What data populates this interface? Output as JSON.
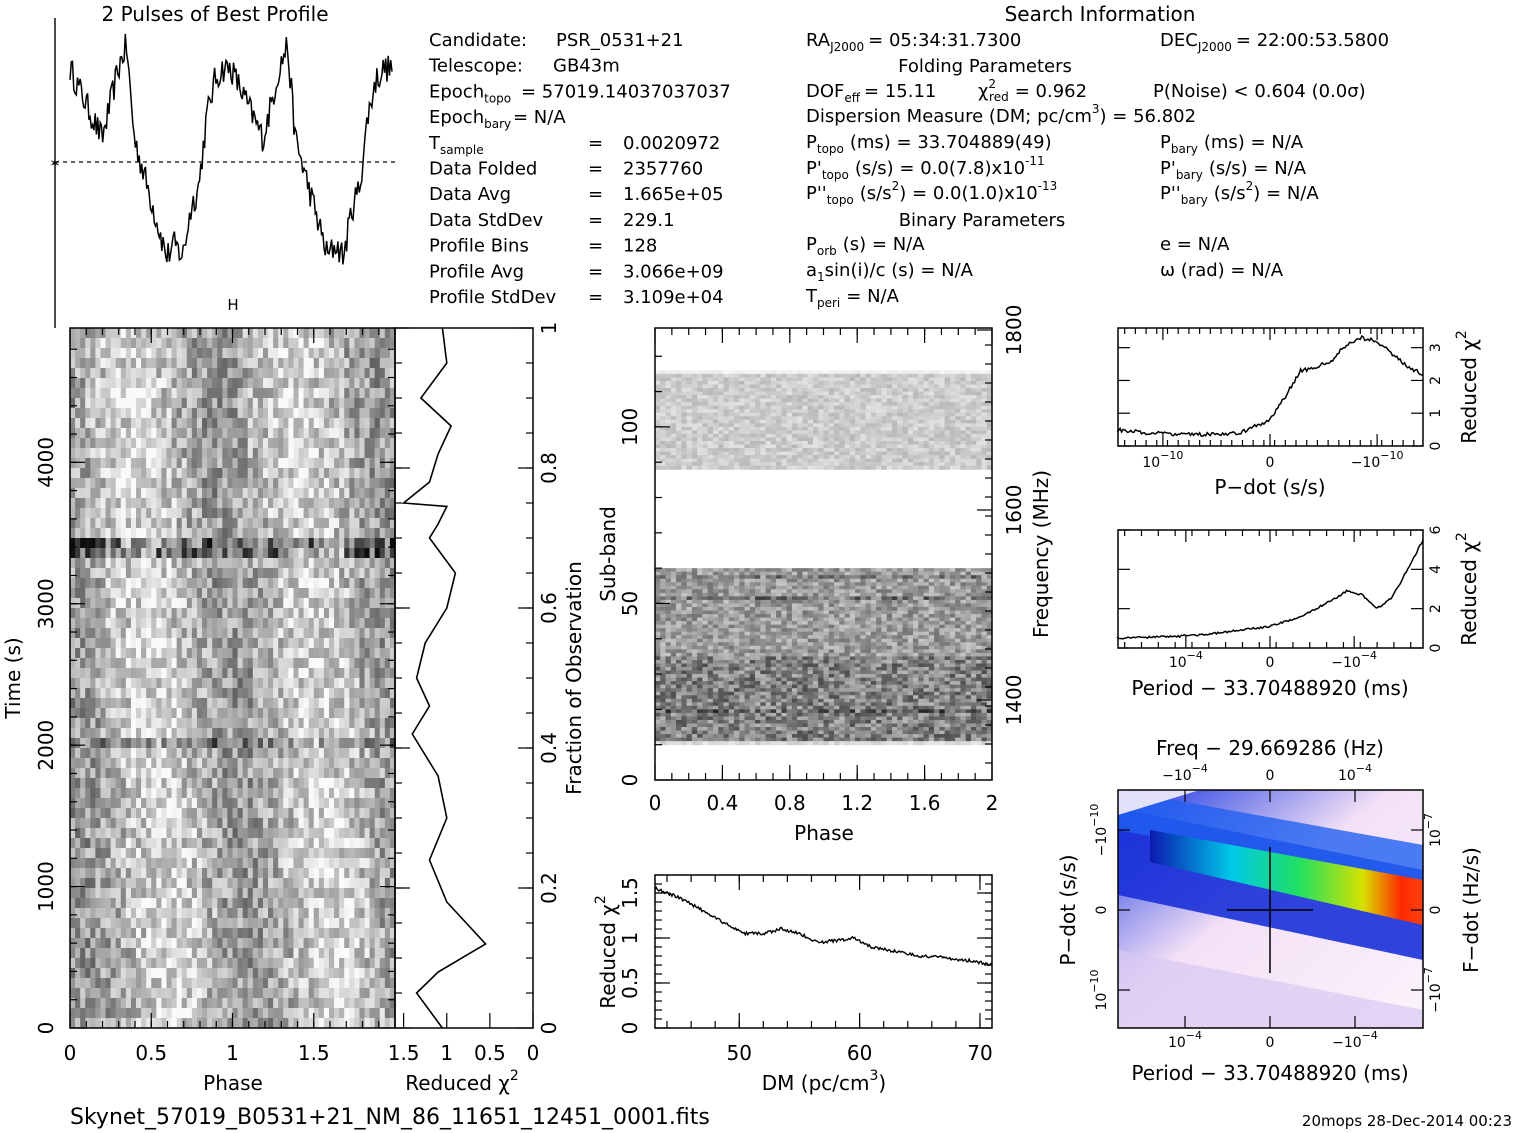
{
  "header": {
    "profile_title": "2 Pulses of Best Profile",
    "search_title": "Search Information",
    "folding_title": "Folding Parameters",
    "binary_title": "Binary Parameters"
  },
  "info_left": [
    {
      "label": "Candidate:",
      "value": "PSR_0531+21"
    },
    {
      "label": "Telescope:",
      "value": "GB43m"
    },
    {
      "label": "Epoch",
      "sub": "topo",
      "value": "= 57019.14037037037"
    },
    {
      "label": "Epoch",
      "sub": "bary",
      "value": "= N/A"
    },
    {
      "label": "T",
      "sub": "sample",
      "value": "0.0020972"
    },
    {
      "label": "Data Folded",
      "value": "2357760"
    },
    {
      "label": "Data Avg",
      "value": "1.665e+05"
    },
    {
      "label": "Data StdDev",
      "value": "229.1"
    },
    {
      "label": "Profile Bins",
      "value": "128"
    },
    {
      "label": "Profile Avg",
      "value": "3.066e+09"
    },
    {
      "label": "Profile StdDev",
      "value": "3.109e+04"
    }
  ],
  "info_right": {
    "ra": "RA",
    "ra_sub": "J2000",
    "ra_value": "= 05:34:31.7300",
    "dec": "DEC",
    "dec_sub": "J2000",
    "dec_value": "= 22:00:53.5800",
    "dof": "DOF",
    "dof_sub": "eff",
    "dof_value": "= 15.11",
    "chi_value": "= 0.962",
    "pnoise": "P(Noise) < 0.604   (0.0σ)",
    "dm_line": "Dispersion Measure (DM; pc/cm",
    "dm_value": ") = 56.802",
    "ptopo": "(ms) =  33.704889(49)",
    "pbary": "(ms) = N/A",
    "pdtopo": "(s/s) = 0.0(7.8)x10",
    "pdtopo_exp": "-11",
    "pdbary": "(s/s) = N/A",
    "pddtopo": "(s/s",
    "pddtopo_val": ") = 0.0(1.0)x10",
    "pddtopo_exp": "-13",
    "pddbary_val": ") = N/A",
    "porb": "(s) = N/A",
    "asini": "a",
    "asini_rest": "sin(i)/c (s) = N/A",
    "tperi": "= N/A",
    "ecc": "e = N/A",
    "omega": "ω (rad) = N/A"
  },
  "footer": {
    "filename": "Skynet_57019_B0531+21_NM_86_11651_12451_0001.fits",
    "stamp": "20mops 28-Dec-2014 00:23"
  },
  "chart_data": [
    {
      "name": "pulse-profile",
      "type": "line",
      "title": "2 Pulses of Best Profile",
      "x": [
        0,
        0.1,
        0.2,
        0.3,
        0.35,
        0.4,
        0.5,
        0.6,
        0.65,
        0.7,
        0.75,
        0.8,
        0.85,
        0.9,
        0.95,
        1.0,
        1.1,
        1.2,
        1.3,
        1.35,
        1.4,
        1.5,
        1.6,
        1.65,
        1.7,
        1.75,
        1.8,
        1.85,
        1.9,
        1.95,
        2.0
      ],
      "y": [
        0.9,
        0.75,
        0.6,
        0.9,
        1.0,
        0.6,
        0.35,
        0.1,
        0.15,
        0.1,
        0.3,
        0.4,
        0.7,
        0.85,
        0.9,
        0.9,
        0.75,
        0.6,
        0.9,
        1.0,
        0.6,
        0.35,
        0.1,
        0.15,
        0.1,
        0.3,
        0.4,
        0.7,
        0.85,
        0.9,
        0.9
      ]
    },
    {
      "name": "time-phase",
      "type": "heatmap",
      "xlabel": "Phase",
      "ylabel": "Time (s)",
      "xlim": [
        0,
        2
      ],
      "ylim": [
        0,
        5000
      ],
      "xticks": [
        "0",
        "0.5",
        "1",
        "1.5"
      ],
      "yticks": [
        "0",
        "1000",
        "2000",
        "3000",
        "4000"
      ]
    },
    {
      "name": "time-chi2",
      "type": "line",
      "xlabel": "Reduced χ",
      "xlabel_sup": "2",
      "ylabel": "Fraction of Observation",
      "xticks": [
        "1.5",
        "1",
        "0.5",
        "0"
      ],
      "yticks": [
        "0",
        "0.2",
        "0.4",
        "0.6",
        "0.8",
        "1"
      ],
      "x": [
        1.05,
        1.35,
        1.1,
        0.55,
        1.0,
        1.2,
        1.0,
        1.1,
        1.3,
        1.4,
        1.2,
        1.35,
        1.25,
        1.0,
        0.9,
        1.2,
        1.1,
        1.0,
        1.5,
        1.2,
        1.1,
        0.95,
        1.3,
        1.0,
        1.05
      ],
      "y": [
        0,
        0.05,
        0.08,
        0.12,
        0.18,
        0.24,
        0.3,
        0.36,
        0.4,
        0.42,
        0.46,
        0.5,
        0.55,
        0.6,
        0.65,
        0.7,
        0.72,
        0.745,
        0.75,
        0.78,
        0.82,
        0.86,
        0.9,
        0.95,
        1.0
      ]
    },
    {
      "name": "subband-phase",
      "type": "heatmap",
      "xlabel": "Phase",
      "ylabel": "Sub-band",
      "ylabel2": "Frequency (MHz)",
      "xlim": [
        0,
        2
      ],
      "ylim": [
        0,
        128
      ],
      "xticks": [
        "0",
        "0.4",
        "0.8",
        "1.2",
        "1.6",
        "2"
      ],
      "yticks": [
        "0",
        "50",
        "100"
      ],
      "y2ticks": [
        "1400",
        "1600",
        "1800"
      ]
    },
    {
      "name": "dm-chi2",
      "type": "line",
      "xlabel": "DM (pc/cm",
      "xlabel_sup": "3",
      "xlabel_end": ")",
      "ylabel": "Reduced χ",
      "ylabel_sup": "2",
      "xlim": [
        43,
        71
      ],
      "ylim": [
        0,
        1.7
      ],
      "xticks": [
        "50",
        "60",
        "70"
      ],
      "yticks": [
        "0",
        "0.5",
        "1",
        "1.5"
      ],
      "x": [
        43,
        45,
        47,
        49,
        50.5,
        52,
        53.5,
        55,
        56.5,
        58,
        59.5,
        61,
        63,
        65,
        67,
        69,
        71
      ],
      "y": [
        1.55,
        1.45,
        1.3,
        1.15,
        1.05,
        1.05,
        1.1,
        1.05,
        0.95,
        0.97,
        1.0,
        0.9,
        0.85,
        0.8,
        0.78,
        0.75,
        0.7
      ]
    },
    {
      "name": "pdot-chi2",
      "type": "line",
      "xlabel": "P−dot (s/s)",
      "ylabel": "Reduced χ",
      "ylabel_sup": "2",
      "ylim": [
        0,
        3.5
      ],
      "xticks": [
        "10",
        "0",
        "−10"
      ],
      "xtick_sup": "−10",
      "yticks": [
        "0",
        "1",
        "2",
        "3"
      ],
      "x": [
        -1.0,
        -0.8,
        -0.6,
        -0.4,
        -0.2,
        0,
        0.1,
        0.2,
        0.3,
        0.4,
        0.5,
        0.6,
        0.7,
        0.8,
        0.9,
        1.0
      ],
      "y": [
        0.5,
        0.4,
        0.35,
        0.35,
        0.4,
        0.8,
        1.5,
        2.3,
        2.4,
        2.6,
        3.1,
        3.3,
        3.2,
        2.8,
        2.4,
        2.2
      ]
    },
    {
      "name": "period-chi2",
      "type": "line",
      "xlabel": "Period − 33.70488920 (ms)",
      "ylabel": "Reduced χ",
      "ylabel_sup": "2",
      "ylim": [
        0,
        6
      ],
      "xticks": [
        "10",
        "0",
        "−10"
      ],
      "xtick_sup": "−4",
      "yticks": [
        "0",
        "2",
        "4",
        "6"
      ],
      "x": [
        -1.0,
        -0.8,
        -0.6,
        -0.4,
        -0.2,
        0,
        0.2,
        0.4,
        0.5,
        0.6,
        0.7,
        0.8,
        0.9,
        1.0
      ],
      "y": [
        0.5,
        0.55,
        0.6,
        0.7,
        0.9,
        1.1,
        1.6,
        2.4,
        2.9,
        2.7,
        2.0,
        2.6,
        4.0,
        5.5
      ]
    },
    {
      "name": "period-pdot",
      "type": "heatmap",
      "title": "Freq − 29.669286 (Hz)",
      "xlabel": "Period − 33.70488920 (ms)",
      "ylabel": "P−dot (s/s)",
      "ylabel2": "F−dot (Hz/s)",
      "xticks": [
        "10",
        "0",
        "−10"
      ],
      "xtick_sup": "−4",
      "x2ticks": [
        "−10",
        "0",
        "10"
      ],
      "x2tick_sup": "−4",
      "yticks": [
        "10",
        "0",
        "−10"
      ],
      "ytick_sup": "−10",
      "y2ticks": [
        "−10",
        "0",
        "10"
      ],
      "y2tick_sup": "−7"
    }
  ]
}
